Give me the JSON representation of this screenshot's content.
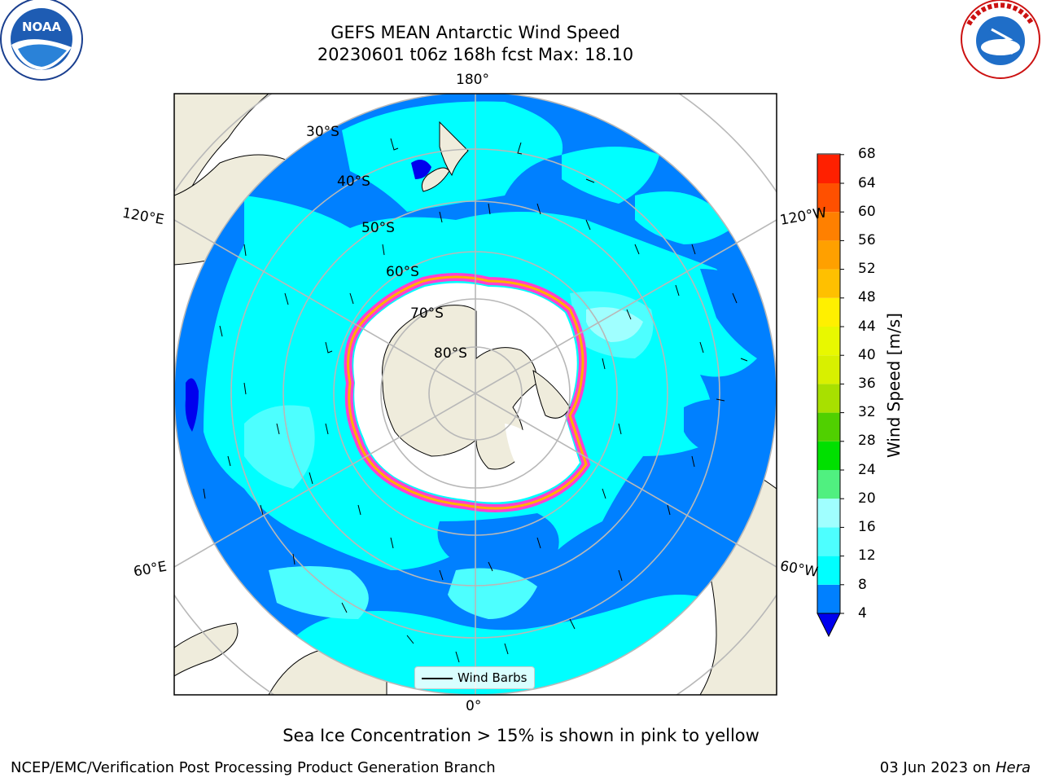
{
  "header": {
    "title_line1": "GEFS MEAN Antarctic Wind Speed",
    "title_line2": "20230601 t06z 168h fcst   Max: 18.10"
  },
  "logos": {
    "left": "noaa-logo",
    "right": "national-weather-service-logo"
  },
  "map": {
    "projection": "south-polar-stereographic",
    "longitude_labels": {
      "top": "180°",
      "left_upper": "120°E",
      "right_upper": "120°W",
      "left_lower": "60°E",
      "right_lower": "60°W",
      "bottom": "0°"
    },
    "latitude_labels": [
      "30°S",
      "40°S",
      "50°S",
      "60°S",
      "70°S",
      "80°S"
    ],
    "legend_label": "Wind Barbs"
  },
  "colorbar": {
    "label": "Wind Speed [m/s]",
    "ticks": [
      "4",
      "8",
      "12",
      "16",
      "20",
      "24",
      "28",
      "32",
      "36",
      "40",
      "44",
      "48",
      "52",
      "56",
      "60",
      "64",
      "68"
    ],
    "colors": [
      "#0000ee",
      "#0080ff",
      "#00ffff",
      "#4dffff",
      "#a0ffff",
      "#50f080",
      "#00e000",
      "#50d000",
      "#a8e000",
      "#d8f000",
      "#e8f800",
      "#fff000",
      "#ffc000",
      "#ffa000",
      "#ff8000",
      "#ff5000",
      "#ff2000",
      "#ff0000"
    ]
  },
  "notes": {
    "sea_ice": "Sea Ice Concentration > 15% is shown in pink to yellow"
  },
  "footer": {
    "left": "NCEP/EMC/Verification Post Processing Product Generation Branch",
    "right_date": "03 Jun 2023 on",
    "right_host": "Hera"
  }
}
